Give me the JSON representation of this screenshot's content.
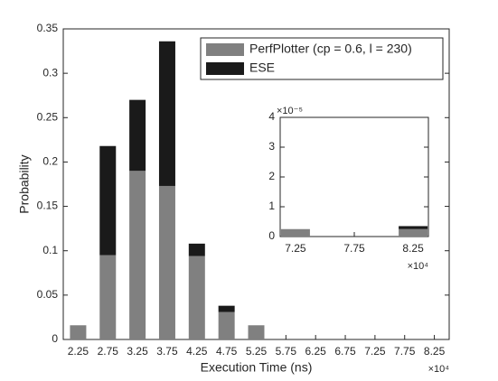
{
  "chart_data": [
    {
      "type": "stacked_bar",
      "x_label": "Execution Time (ns)",
      "y_label": "Probability",
      "x_multiplier": "×10⁴",
      "categories": [
        "2.25",
        "2.75",
        "3.25",
        "3.75",
        "4.25",
        "4.75",
        "5.25",
        "5.75",
        "6.25",
        "6.75",
        "7.25",
        "7.75",
        "8.25"
      ],
      "series": [
        {
          "name": "PerfPlotter (cp = 0.6, l = 230)",
          "color": "#808080",
          "values": [
            0.016,
            0.095,
            0.19,
            0.173,
            0.094,
            0.031,
            0.016,
            0,
            0,
            0,
            0,
            0,
            0
          ]
        },
        {
          "name": "ESE",
          "color": "#1a1a1a",
          "values": [
            0,
            0.123,
            0.08,
            0.163,
            0.014,
            0.007,
            0,
            0,
            0,
            0,
            0,
            0,
            0
          ]
        }
      ],
      "ylim": [
        0,
        0.35
      ],
      "yticks": [
        0,
        0.05,
        0.1,
        0.15,
        0.2,
        0.25,
        0.3,
        0.35
      ],
      "legend": "upper right"
    },
    {
      "type": "stacked_bar",
      "x_multiplier": "×10⁴",
      "y_multiplier": "×10⁻⁵",
      "x": [
        7.25,
        8.25
      ],
      "series": [
        {
          "color": "#808080",
          "values": [
            0.25,
            0.25
          ]
        },
        {
          "color": "#1a1a1a",
          "values": [
            0,
            0.1
          ]
        }
      ],
      "xlim": [
        7.12,
        8.38
      ],
      "xticks": [
        7.25,
        7.75,
        8.25
      ],
      "ylim": [
        0,
        4
      ],
      "yticks": [
        0,
        1,
        2,
        3,
        4
      ]
    }
  ]
}
